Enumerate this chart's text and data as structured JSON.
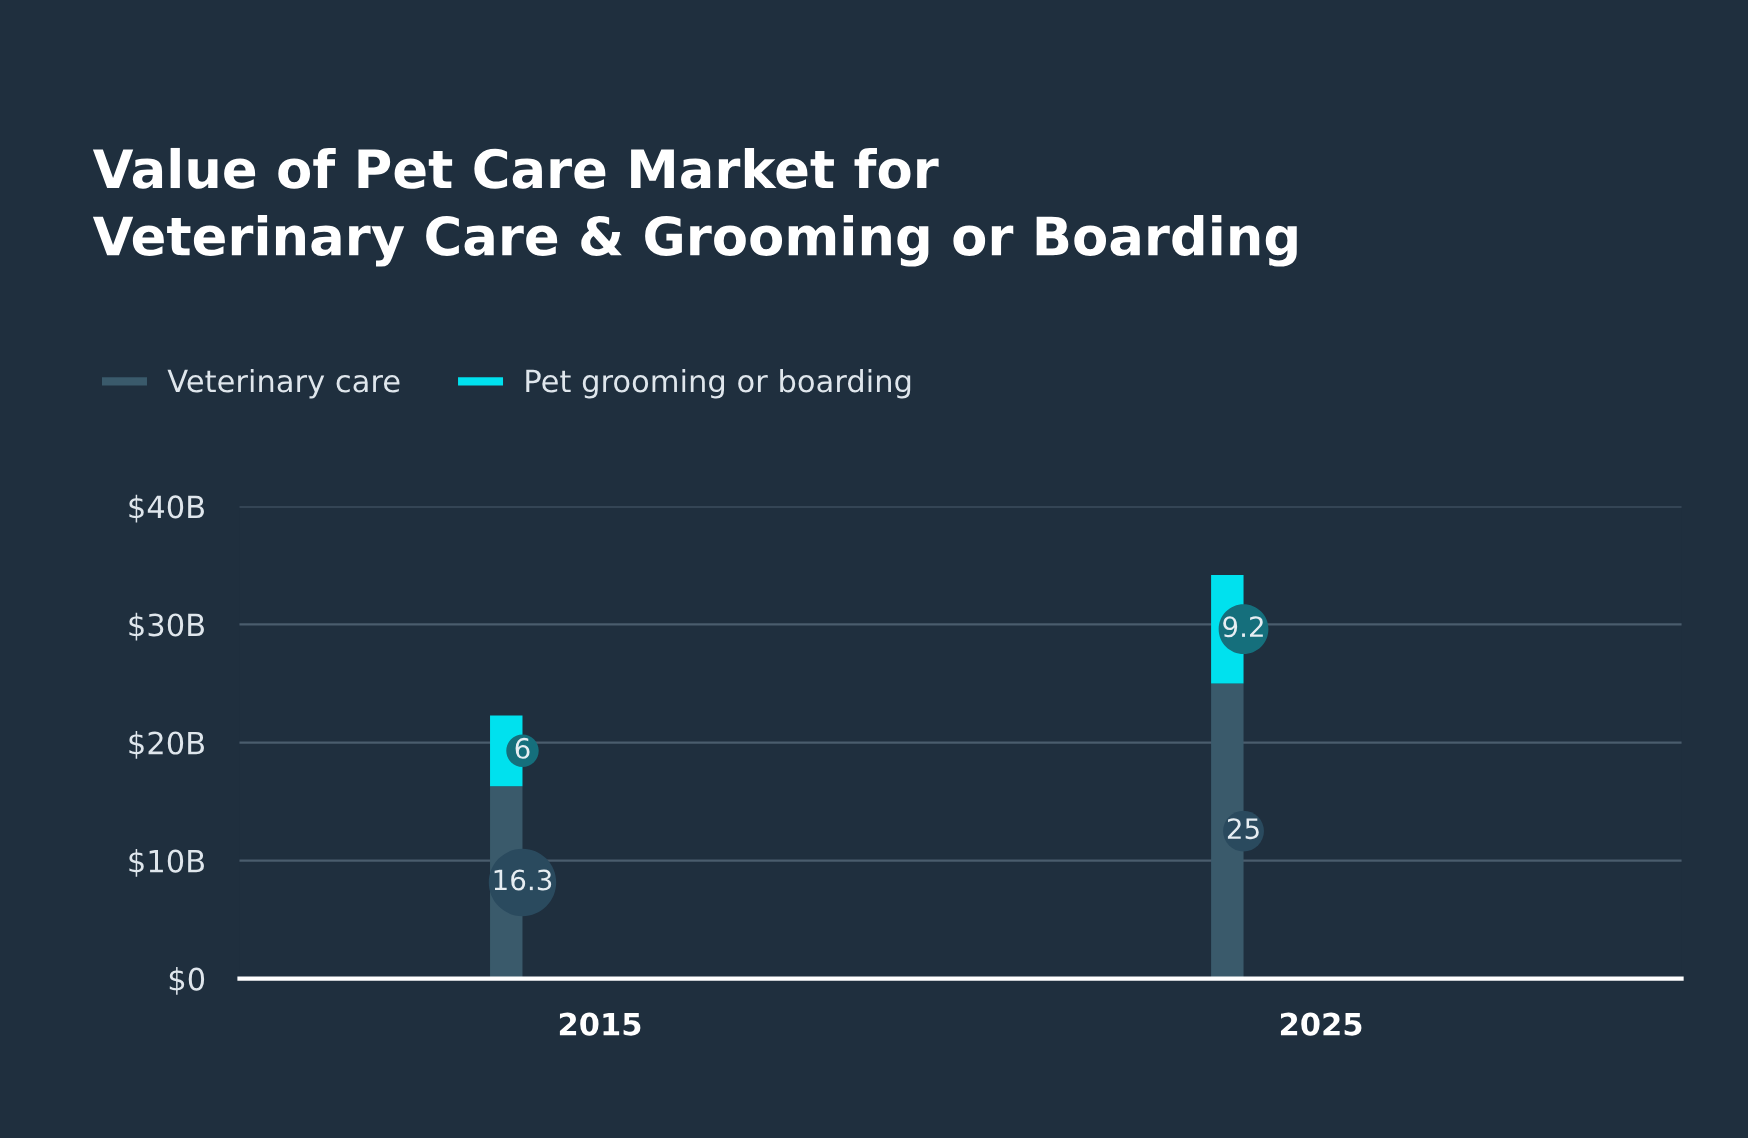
{
  "chart_data": {
    "type": "bar",
    "stacked": true,
    "title": "Value of Pet Care Market for\nVeterinary Care & Grooming or Boarding",
    "categories": [
      "2015",
      "2025"
    ],
    "series": [
      {
        "name": "Veterinary care",
        "color": "#3a5a6b",
        "values": [
          16.3,
          25
        ]
      },
      {
        "name": "Pet grooming or boarding",
        "color": "#00e1ee",
        "values": [
          6,
          9.2
        ]
      }
    ],
    "ylim": [
      0,
      40
    ],
    "yticks": [
      {
        "value": 0,
        "label": "$0"
      },
      {
        "value": 10,
        "label": "$10B"
      },
      {
        "value": 20,
        "label": "$20B"
      },
      {
        "value": 30,
        "label": "$30B"
      },
      {
        "value": 40,
        "label": "$40B"
      }
    ],
    "grid": "y",
    "legend": "top left",
    "data_labels": true
  }
}
